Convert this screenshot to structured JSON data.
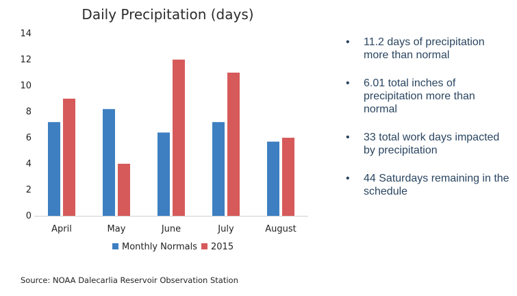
{
  "chart_data": {
    "type": "bar",
    "title": "Daily Precipitation (days)",
    "categories": [
      "April",
      "May",
      "June",
      "July",
      "August"
    ],
    "series": [
      {
        "name": "Monthly Normals",
        "color": "#3d7fc1",
        "values": [
          7.2,
          8.2,
          6.4,
          7.2,
          5.7
        ]
      },
      {
        "name": "2015",
        "color": "#d65a5a",
        "values": [
          9,
          4,
          12,
          11,
          6
        ]
      }
    ],
    "yticks": [
      0,
      2,
      4,
      6,
      8,
      10,
      12,
      14
    ],
    "ylim": [
      0,
      14
    ],
    "xlabel": "",
    "ylabel": "",
    "legend": "bottom"
  },
  "notes": [
    {
      "bullet": "•",
      "text": "11.2 days of precipitation more than normal"
    },
    {
      "bullet": "•",
      "text": "6.01 total inches of precipitation more than normal"
    },
    {
      "bullet": "•",
      "text": "33 total work days impacted by precipitation"
    },
    {
      "bullet": "•",
      "text": "44 Saturdays remaining in the schedule"
    }
  ],
  "source": "Source: NOAA Dalecarlia Reservoir Observation Station"
}
